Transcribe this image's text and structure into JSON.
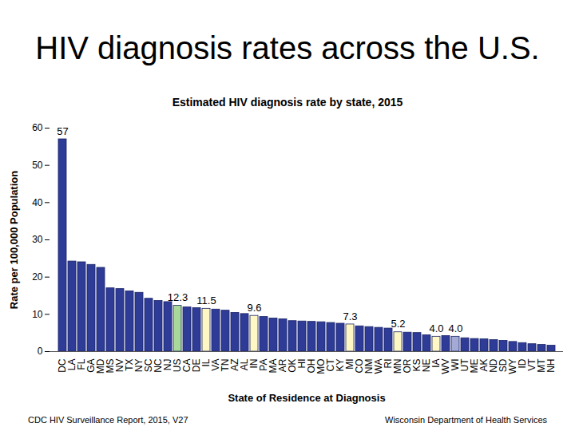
{
  "chart_data": {
    "type": "bar",
    "title": "HIV diagnosis rates across the U.S.",
    "subtitle": "Estimated HIV diagnosis rate by state, 2015",
    "x_label": "State of Residence at Diagnosis",
    "y_label": "Rate per 100,000 Population",
    "annotations": [
      "CDC HIV Surveillance Report, 2015, V27",
      "Wisconsin Department of Health Services"
    ],
    "categories": [
      "DC",
      "LA",
      "FL",
      "GA",
      "MD",
      "MS",
      "NV",
      "TX",
      "NY",
      "SC",
      "NC",
      "NJ",
      "US",
      "CA",
      "DE",
      "IL",
      "VA",
      "TN",
      "AZ",
      "AL",
      "IN",
      "PA",
      "MA",
      "AR",
      "OK",
      "HI",
      "OH",
      "MO",
      "CT",
      "KY",
      "MI",
      "CO",
      "NM",
      "WA",
      "RI",
      "MN",
      "OR",
      "KS",
      "NE",
      "IA",
      "WV",
      "WI",
      "UT",
      "ME",
      "AK",
      "ND",
      "SD",
      "WY",
      "ID",
      "VT",
      "MT",
      "NH"
    ],
    "values": [
      57,
      24.2,
      24,
      23.3,
      22.5,
      17,
      16.8,
      16.2,
      15.8,
      14.2,
      13.6,
      13.3,
      12.3,
      11.9,
      11.7,
      11.5,
      11.3,
      11,
      10.4,
      10.1,
      9.6,
      9.3,
      8.9,
      8.7,
      8.2,
      8.1,
      8,
      7.9,
      7.7,
      7.5,
      7.3,
      6.8,
      6.6,
      6.4,
      6.2,
      5.2,
      5.1,
      5,
      4.4,
      4,
      4.2,
      4,
      3.6,
      3.4,
      3.3,
      3.1,
      2.9,
      2.6,
      2.3,
      2,
      1.8,
      1.6
    ],
    "value_labels": [
      "57",
      null,
      null,
      null,
      null,
      null,
      null,
      null,
      null,
      null,
      null,
      null,
      "12.3",
      null,
      null,
      "11.5",
      null,
      null,
      null,
      null,
      "9.6",
      null,
      null,
      null,
      null,
      null,
      null,
      null,
      null,
      null,
      "7.3",
      null,
      null,
      null,
      null,
      "5.2",
      null,
      null,
      null,
      "4.0",
      null,
      "4.0",
      null,
      null,
      null,
      null,
      null,
      null,
      null,
      null,
      null,
      null
    ],
    "colors": [
      "#2e3b97",
      "#2e3b97",
      "#2e3b97",
      "#2e3b97",
      "#2e3b97",
      "#2e3b97",
      "#2e3b97",
      "#2e3b97",
      "#2e3b97",
      "#2e3b97",
      "#2e3b97",
      "#2e3b97",
      "#a9d99a",
      "#2e3b97",
      "#2e3b97",
      "#fff8c4",
      "#2e3b97",
      "#2e3b97",
      "#2e3b97",
      "#2e3b97",
      "#fff8c4",
      "#2e3b97",
      "#2e3b97",
      "#2e3b97",
      "#2e3b97",
      "#2e3b97",
      "#2e3b97",
      "#2e3b97",
      "#2e3b97",
      "#2e3b97",
      "#fff8c4",
      "#2e3b97",
      "#2e3b97",
      "#2e3b97",
      "#2e3b97",
      "#fff8c4",
      "#2e3b97",
      "#2e3b97",
      "#2e3b97",
      "#fff8c4",
      "#2e3b97",
      "#a3aad6",
      "#2e3b97",
      "#2e3b97",
      "#2e3b97",
      "#2e3b97",
      "#2e3b97",
      "#2e3b97",
      "#2e3b97",
      "#2e3b97",
      "#2e3b97",
      "#2e3b97"
    ],
    "data_labels": true,
    "ylim": [
      0,
      60
    ],
    "yticks": [
      0,
      10,
      20,
      30,
      40,
      50,
      60
    ],
    "grid": false
  }
}
